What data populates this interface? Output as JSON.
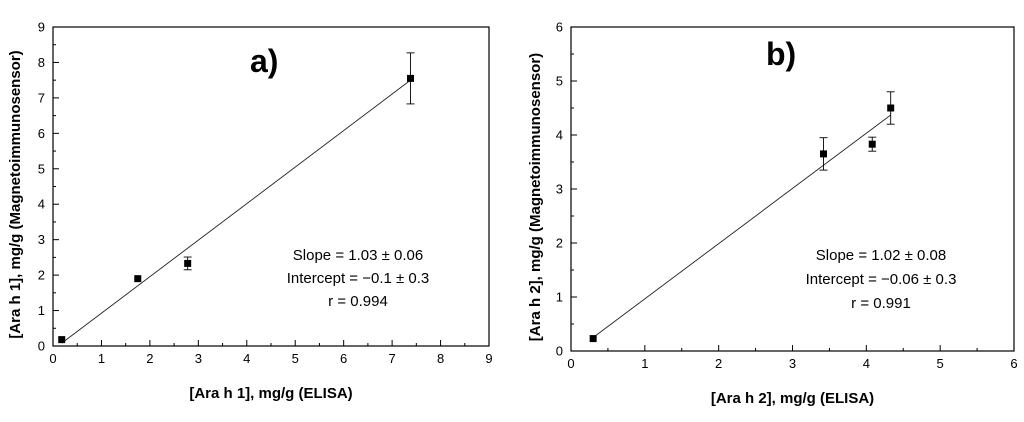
{
  "chart_data": [
    {
      "type": "scatter",
      "panel_label": "a)",
      "xlabel": "[Ara h 1], mg/g (ELISA)",
      "ylabel": "[Ara h 1], mg/g (Magnetoimmunosensor)",
      "xlim": [
        0,
        9
      ],
      "ylim": [
        0,
        9
      ],
      "x_ticks": [
        "0",
        "1",
        "2",
        "3",
        "4",
        "5",
        "6",
        "7",
        "8",
        "9"
      ],
      "y_ticks": [
        "0",
        "1",
        "2",
        "3",
        "4",
        "5",
        "6",
        "7",
        "8",
        "9"
      ],
      "points": [
        {
          "x": 0.18,
          "y": 0.18,
          "err": 0
        },
        {
          "x": 1.75,
          "y": 1.9,
          "err": 0
        },
        {
          "x": 2.78,
          "y": 2.33,
          "err": 0.18
        },
        {
          "x": 7.38,
          "y": 7.55,
          "err": 0.72
        }
      ],
      "fit_line": {
        "x": [
          0.18,
          7.38
        ],
        "y": [
          0.08,
          7.5
        ]
      },
      "stats": [
        "Slope = 1.03 ± 0.06",
        "Intercept = −0.1 ± 0.3",
        "r = 0.994"
      ]
    },
    {
      "type": "scatter",
      "panel_label": "b)",
      "xlabel": "[Ara h 2], mg/g (ELISA)",
      "ylabel": "[Ara h 2], mg/g (Magnetoimmunosensor)",
      "xlim": [
        0,
        6
      ],
      "ylim": [
        0,
        6
      ],
      "x_ticks": [
        "0",
        "1",
        "2",
        "3",
        "4",
        "5",
        "6"
      ],
      "y_ticks": [
        "0",
        "1",
        "2",
        "3",
        "4",
        "5",
        "6"
      ],
      "points": [
        {
          "x": 0.3,
          "y": 0.23,
          "err": 0
        },
        {
          "x": 3.42,
          "y": 3.65,
          "err": 0.3
        },
        {
          "x": 4.08,
          "y": 3.83,
          "err": 0.13
        },
        {
          "x": 4.33,
          "y": 4.5,
          "err": 0.3
        }
      ],
      "fit_line": {
        "x": [
          0.3,
          4.33
        ],
        "y": [
          0.25,
          4.37
        ]
      },
      "stats": [
        "Slope = 1.02 ± 0.08",
        "Intercept = −0.06 ± 0.3",
        "r = 0.991"
      ]
    }
  ]
}
